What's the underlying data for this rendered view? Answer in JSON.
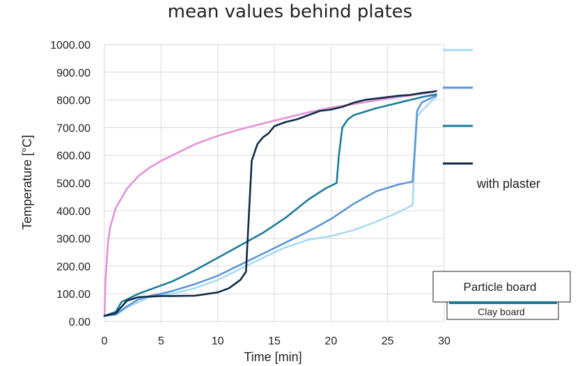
{
  "chart_data": {
    "type": "line",
    "title": "mean values behind plates",
    "xlabel": "Time [min]",
    "ylabel": "Temperature  [°C]",
    "xlim": [
      0,
      30
    ],
    "ylim": [
      0,
      1000
    ],
    "x_ticks": [
      "0",
      "5",
      "10",
      "15",
      "20",
      "25",
      "30"
    ],
    "y_ticks": [
      "0.00",
      "100.00",
      "200.00",
      "300.00",
      "400.00",
      "500.00",
      "600.00",
      "700.00",
      "800.00",
      "900.00",
      "1000.00"
    ],
    "grid": true,
    "series": [
      {
        "color": "#e291d8",
        "x": [
          0,
          0.1,
          0.3,
          0.5,
          1,
          2,
          3,
          4,
          5,
          6,
          8,
          10,
          12,
          15,
          18,
          20,
          22,
          25,
          28,
          29
        ],
        "y": [
          20,
          150,
          280,
          340,
          410,
          480,
          525,
          556,
          580,
          600,
          640,
          670,
          694,
          725,
          755,
          772,
          785,
          805,
          822,
          828
        ]
      },
      {
        "color": "#a8daf3",
        "x": [
          0,
          1,
          2,
          3,
          4,
          5,
          6,
          8,
          10,
          12,
          14,
          16,
          18,
          19,
          20,
          22,
          24,
          26,
          27.2,
          27.4,
          27.6,
          28,
          28.5,
          29,
          29.3
        ],
        "y": [
          20,
          25,
          50,
          70,
          88,
          95,
          100,
          120,
          150,
          190,
          230,
          268,
          295,
          302,
          308,
          330,
          360,
          395,
          420,
          600,
          740,
          760,
          780,
          800,
          810
        ]
      },
      {
        "color": "#5b95d6",
        "x": [
          0,
          1,
          2,
          3,
          4,
          5,
          6,
          8,
          10,
          12,
          14,
          16,
          18,
          20,
          22,
          24,
          26,
          27.2,
          27.4,
          27.6,
          28,
          28.5,
          29,
          29.3
        ],
        "y": [
          20,
          25,
          55,
          80,
          92,
          100,
          110,
          135,
          165,
          205,
          245,
          285,
          325,
          370,
          425,
          470,
          495,
          505,
          620,
          760,
          790,
          800,
          810,
          815
        ]
      },
      {
        "color": "#1a7a9a",
        "x": [
          0,
          1,
          1.5,
          2,
          3,
          4,
          5,
          6,
          8,
          10,
          12,
          14,
          16,
          18,
          19.5,
          20.5,
          20.7,
          21,
          21.5,
          22,
          24,
          26,
          28,
          29.3
        ],
        "y": [
          20,
          35,
          70,
          80,
          100,
          115,
          130,
          145,
          185,
          230,
          275,
          320,
          375,
          440,
          480,
          500,
          600,
          700,
          730,
          745,
          770,
          790,
          810,
          820
        ]
      },
      {
        "color": "#0e2b45",
        "x": [
          0,
          1,
          2,
          3,
          4,
          5,
          6,
          8,
          10,
          11,
          12,
          12.5,
          12.8,
          13,
          13.5,
          14,
          14.5,
          15,
          16,
          17,
          18,
          19,
          20,
          21,
          22,
          23,
          24,
          25,
          26,
          27,
          28,
          29,
          29.3
        ],
        "y": [
          20,
          30,
          75,
          88,
          90,
          92,
          92,
          93,
          105,
          120,
          150,
          180,
          420,
          580,
          640,
          665,
          680,
          705,
          720,
          730,
          745,
          760,
          765,
          775,
          790,
          800,
          805,
          810,
          815,
          818,
          825,
          830,
          832
        ]
      }
    ],
    "legend": {
      "placement": "right",
      "entries": [
        "",
        "",
        "",
        "with plaster"
      ]
    },
    "annotations": [
      "Particle board",
      "Clay board"
    ]
  }
}
